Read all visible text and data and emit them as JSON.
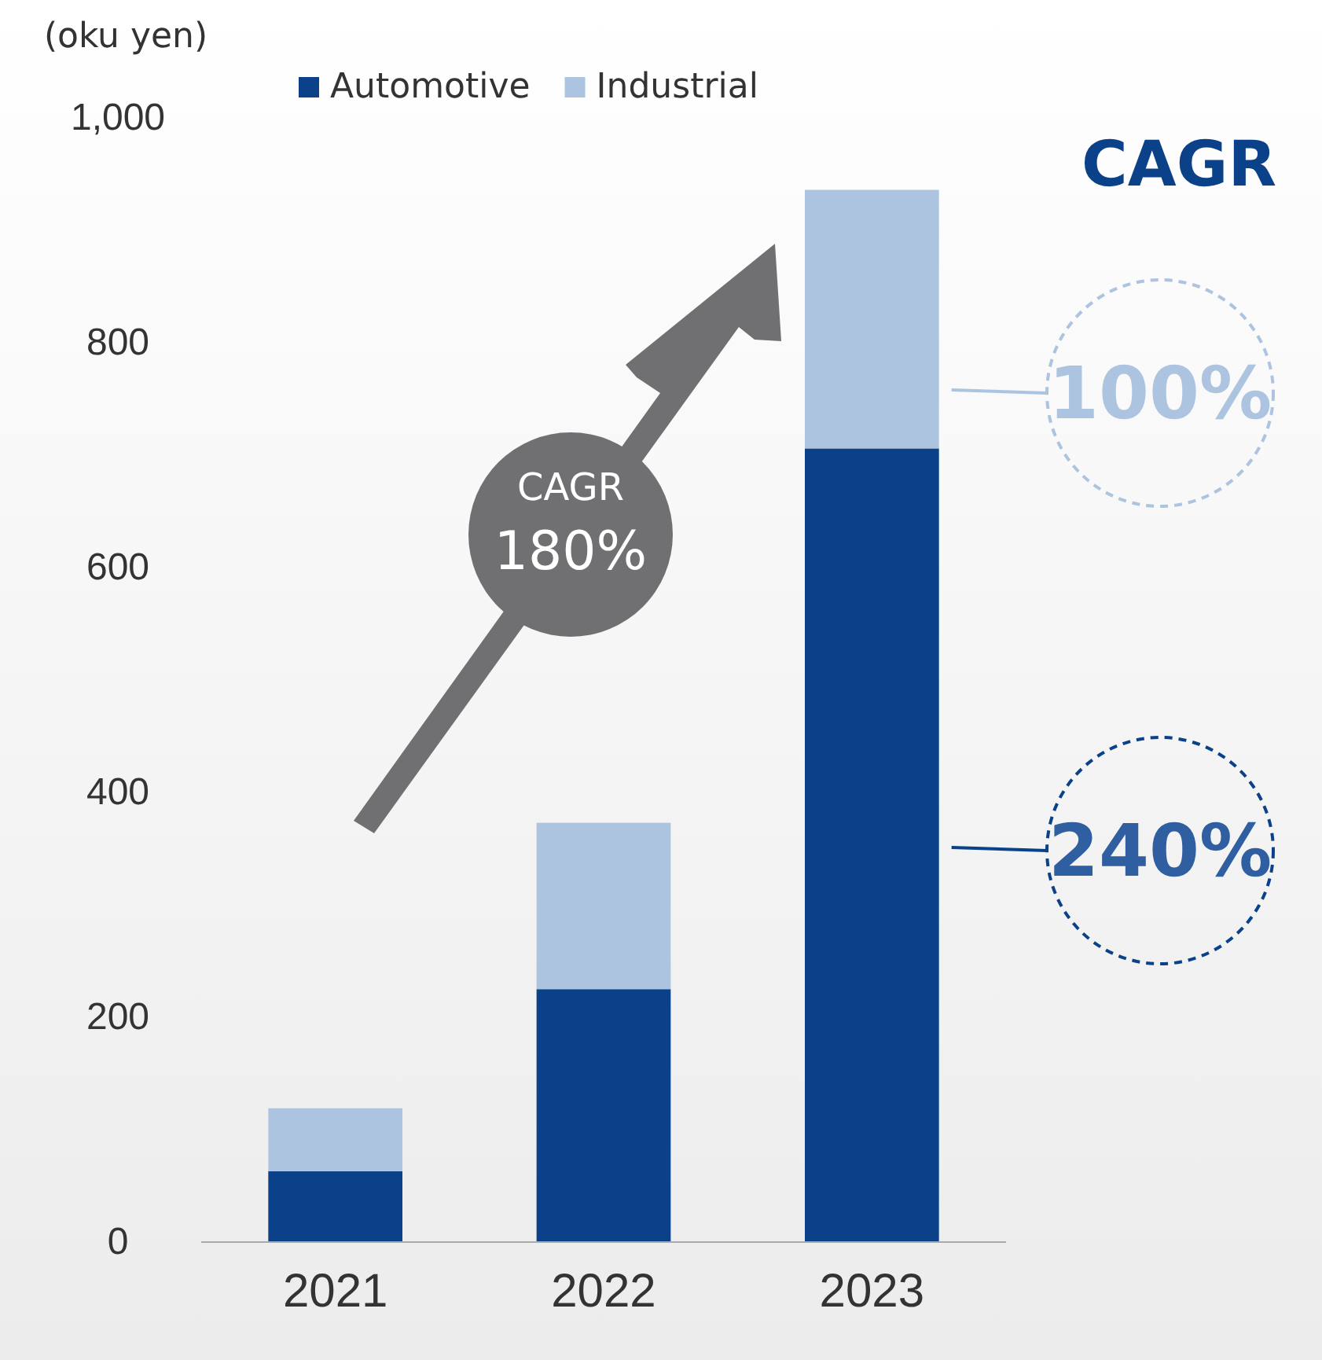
{
  "chart_data": {
    "type": "bar",
    "stacked": true,
    "ylabel": "(oku yen)",
    "categories": [
      "2021",
      "2022",
      "2023"
    ],
    "series": [
      {
        "name": "Automotive",
        "color": "#0a4189",
        "values": [
          63,
          225,
          706
        ]
      },
      {
        "name": "Industrial",
        "color": "#adc4e0",
        "values": [
          56,
          148,
          230
        ]
      }
    ],
    "ylim": [
      0,
      1000
    ],
    "yticks": [
      0,
      200,
      400,
      600,
      800,
      {
        "value": 1000,
        "label": "1,000"
      }
    ],
    "legend": "top",
    "annotations": [
      "CAGR",
      "100%",
      "240%",
      "CAGR 180%"
    ]
  }
}
